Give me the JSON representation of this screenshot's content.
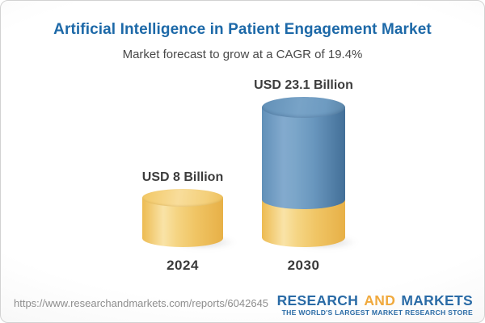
{
  "header": {
    "title": "Artificial Intelligence in Patient Engagement Market",
    "subtitle": "Market forecast to grow at a CAGR of 19.4%"
  },
  "chart_data": {
    "type": "bar",
    "style": "3d-cylinder",
    "title": "Artificial Intelligence in Patient Engagement Market",
    "subtitle": "Market forecast to grow at a CAGR of 19.4%",
    "cagr_percent": 19.4,
    "unit": "USD Billion",
    "categories": [
      "2024",
      "2030"
    ],
    "values": [
      8,
      23.1
    ],
    "data_labels": [
      "USD 8 Billion",
      "USD 23.1 Billion"
    ],
    "xlabel": "",
    "ylabel": "",
    "grid": false,
    "legend": "none",
    "series_colors": {
      "bar_2024": "#f2c75f",
      "bar_2030_growth": "#6797c0",
      "bar_2030_base": "#f2c75f"
    }
  },
  "footer": {
    "url": "https://www.researchandmarkets.com/reports/6042645",
    "logo": {
      "word1": "RESEARCH",
      "word2": "AND",
      "word3": "MARKETS",
      "tagline": "THE WORLD'S LARGEST MARKET RESEARCH STORE"
    }
  },
  "colors": {
    "title_blue": "#1d69a8",
    "subtitle_gray": "#484848",
    "label_dark": "#3d3d3d",
    "url_gray": "#8e8e8e",
    "logo_blue": "#2a6ba6",
    "logo_orange": "#f0a93d",
    "card_border": "#d2d2d2"
  }
}
